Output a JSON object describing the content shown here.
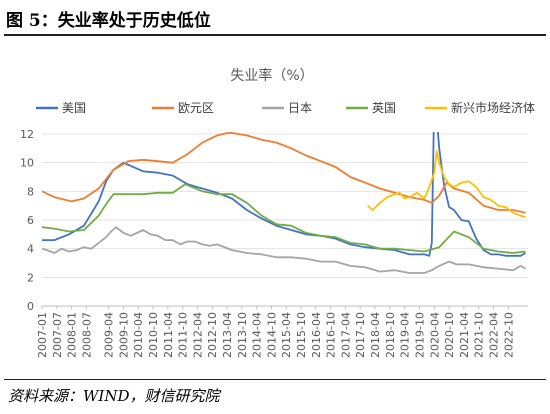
{
  "figure": {
    "title": "图 5：失业率处于历史低位",
    "source": "资料来源：WIND，财信研究院"
  },
  "chart_data": {
    "type": "line",
    "title": "失业率（%）",
    "xlabel": "",
    "ylabel": "",
    "ylim": [
      0,
      12
    ],
    "yticks": [
      0,
      2,
      4,
      6,
      8,
      10,
      12
    ],
    "xlim": [
      "2007-01",
      "2023-06"
    ],
    "xtick_labels": [
      "2007-01",
      "2007-07",
      "2008-01",
      "2008-07",
      "2009-04",
      "2009-10",
      "2010-04",
      "2010-10",
      "2011-04",
      "2011-10",
      "2012-04",
      "2012-10",
      "2013-04",
      "2013-10",
      "2014-04",
      "2014-10",
      "2015-04",
      "2015-10",
      "2016-04",
      "2016-10",
      "2017-04",
      "2017-10",
      "2018-04",
      "2018-10",
      "2019-04",
      "2019-10",
      "2020-04",
      "2020-10",
      "2021-04",
      "2021-10",
      "2022-04",
      "2022-10"
    ],
    "grid": "horizontal",
    "legend_position": "top",
    "series": [
      {
        "name": "美国",
        "color": "#4472C4",
        "points": [
          [
            "2007-01",
            4.6
          ],
          [
            "2007-06",
            4.6
          ],
          [
            "2007-12",
            5.0
          ],
          [
            "2008-06",
            5.6
          ],
          [
            "2008-12",
            7.3
          ],
          [
            "2009-03",
            8.7
          ],
          [
            "2009-06",
            9.5
          ],
          [
            "2009-10",
            10.0
          ],
          [
            "2010-06",
            9.4
          ],
          [
            "2010-12",
            9.3
          ],
          [
            "2011-06",
            9.1
          ],
          [
            "2011-12",
            8.5
          ],
          [
            "2012-06",
            8.2
          ],
          [
            "2012-12",
            7.9
          ],
          [
            "2013-06",
            7.5
          ],
          [
            "2013-12",
            6.7
          ],
          [
            "2014-06",
            6.1
          ],
          [
            "2014-12",
            5.6
          ],
          [
            "2015-06",
            5.3
          ],
          [
            "2015-12",
            5.0
          ],
          [
            "2016-06",
            4.9
          ],
          [
            "2016-12",
            4.7
          ],
          [
            "2017-06",
            4.3
          ],
          [
            "2017-12",
            4.1
          ],
          [
            "2018-06",
            4.0
          ],
          [
            "2018-12",
            3.9
          ],
          [
            "2019-06",
            3.6
          ],
          [
            "2019-12",
            3.6
          ],
          [
            "2020-02",
            3.5
          ],
          [
            "2020-03",
            4.4
          ],
          [
            "2020-04",
            14.7
          ],
          [
            "2020-05",
            13.2
          ],
          [
            "2020-06",
            11.0
          ],
          [
            "2020-08",
            8.4
          ],
          [
            "2020-10",
            6.9
          ],
          [
            "2020-12",
            6.7
          ],
          [
            "2021-03",
            6.0
          ],
          [
            "2021-06",
            5.9
          ],
          [
            "2021-09",
            4.7
          ],
          [
            "2021-12",
            3.9
          ],
          [
            "2022-03",
            3.6
          ],
          [
            "2022-06",
            3.6
          ],
          [
            "2022-09",
            3.5
          ],
          [
            "2022-12",
            3.5
          ],
          [
            "2023-03",
            3.5
          ],
          [
            "2023-05",
            3.7
          ]
        ]
      },
      {
        "name": "欧元区",
        "color": "#ED7D31",
        "points": [
          [
            "2007-01",
            8.0
          ],
          [
            "2007-06",
            7.6
          ],
          [
            "2008-01",
            7.3
          ],
          [
            "2008-06",
            7.5
          ],
          [
            "2008-12",
            8.2
          ],
          [
            "2009-06",
            9.5
          ],
          [
            "2009-12",
            10.1
          ],
          [
            "2010-06",
            10.2
          ],
          [
            "2010-12",
            10.1
          ],
          [
            "2011-06",
            10.0
          ],
          [
            "2011-12",
            10.6
          ],
          [
            "2012-06",
            11.4
          ],
          [
            "2012-12",
            11.9
          ],
          [
            "2013-05",
            12.1
          ],
          [
            "2013-12",
            11.9
          ],
          [
            "2014-06",
            11.6
          ],
          [
            "2014-12",
            11.4
          ],
          [
            "2015-06",
            11.0
          ],
          [
            "2015-12",
            10.5
          ],
          [
            "2016-06",
            10.1
          ],
          [
            "2016-12",
            9.7
          ],
          [
            "2017-06",
            9.0
          ],
          [
            "2017-12",
            8.6
          ],
          [
            "2018-06",
            8.2
          ],
          [
            "2018-12",
            7.9
          ],
          [
            "2019-06",
            7.6
          ],
          [
            "2019-12",
            7.4
          ],
          [
            "2020-03",
            7.2
          ],
          [
            "2020-06",
            7.7
          ],
          [
            "2020-09",
            8.6
          ],
          [
            "2020-12",
            8.2
          ],
          [
            "2021-06",
            7.9
          ],
          [
            "2021-12",
            7.0
          ],
          [
            "2022-06",
            6.7
          ],
          [
            "2022-12",
            6.7
          ],
          [
            "2023-05",
            6.5
          ]
        ]
      },
      {
        "name": "日本",
        "color": "#A5A5A5",
        "points": [
          [
            "2007-01",
            4.0
          ],
          [
            "2007-03",
            3.9
          ],
          [
            "2007-06",
            3.7
          ],
          [
            "2007-09",
            4.0
          ],
          [
            "2007-12",
            3.8
          ],
          [
            "2008-03",
            3.9
          ],
          [
            "2008-06",
            4.1
          ],
          [
            "2008-09",
            4.0
          ],
          [
            "2008-12",
            4.4
          ],
          [
            "2009-03",
            4.8
          ],
          [
            "2009-05",
            5.2
          ],
          [
            "2009-07",
            5.5
          ],
          [
            "2009-10",
            5.1
          ],
          [
            "2010-01",
            4.9
          ],
          [
            "2010-06",
            5.3
          ],
          [
            "2010-09",
            5.0
          ],
          [
            "2010-12",
            4.9
          ],
          [
            "2011-03",
            4.6
          ],
          [
            "2011-06",
            4.6
          ],
          [
            "2011-09",
            4.3
          ],
          [
            "2011-12",
            4.5
          ],
          [
            "2012-03",
            4.5
          ],
          [
            "2012-06",
            4.3
          ],
          [
            "2012-09",
            4.2
          ],
          [
            "2012-12",
            4.3
          ],
          [
            "2013-06",
            3.9
          ],
          [
            "2013-12",
            3.7
          ],
          [
            "2014-06",
            3.6
          ],
          [
            "2014-12",
            3.4
          ],
          [
            "2015-06",
            3.4
          ],
          [
            "2015-12",
            3.3
          ],
          [
            "2016-06",
            3.1
          ],
          [
            "2016-12",
            3.1
          ],
          [
            "2017-06",
            2.8
          ],
          [
            "2017-12",
            2.7
          ],
          [
            "2018-06",
            2.4
          ],
          [
            "2018-12",
            2.5
          ],
          [
            "2019-06",
            2.3
          ],
          [
            "2019-12",
            2.3
          ],
          [
            "2020-03",
            2.5
          ],
          [
            "2020-06",
            2.8
          ],
          [
            "2020-10",
            3.1
          ],
          [
            "2021-01",
            2.9
          ],
          [
            "2021-06",
            2.9
          ],
          [
            "2021-12",
            2.7
          ],
          [
            "2022-06",
            2.6
          ],
          [
            "2022-12",
            2.5
          ],
          [
            "2023-03",
            2.8
          ],
          [
            "2023-05",
            2.6
          ]
        ]
      },
      {
        "name": "英国",
        "color": "#70AD47",
        "points": [
          [
            "2007-01",
            5.5
          ],
          [
            "2007-06",
            5.4
          ],
          [
            "2007-12",
            5.2
          ],
          [
            "2008-06",
            5.3
          ],
          [
            "2008-12",
            6.3
          ],
          [
            "2009-03",
            7.1
          ],
          [
            "2009-06",
            7.8
          ],
          [
            "2009-12",
            7.8
          ],
          [
            "2010-06",
            7.8
          ],
          [
            "2010-12",
            7.9
          ],
          [
            "2011-06",
            7.9
          ],
          [
            "2011-11",
            8.5
          ],
          [
            "2012-06",
            8.0
          ],
          [
            "2012-12",
            7.8
          ],
          [
            "2013-06",
            7.8
          ],
          [
            "2013-12",
            7.2
          ],
          [
            "2014-06",
            6.3
          ],
          [
            "2014-12",
            5.7
          ],
          [
            "2015-06",
            5.6
          ],
          [
            "2015-12",
            5.1
          ],
          [
            "2016-06",
            4.9
          ],
          [
            "2016-12",
            4.8
          ],
          [
            "2017-06",
            4.4
          ],
          [
            "2017-12",
            4.3
          ],
          [
            "2018-06",
            4.0
          ],
          [
            "2018-12",
            4.0
          ],
          [
            "2019-06",
            3.9
          ],
          [
            "2019-12",
            3.8
          ],
          [
            "2020-06",
            4.1
          ],
          [
            "2020-12",
            5.2
          ],
          [
            "2021-06",
            4.8
          ],
          [
            "2021-12",
            4.0
          ],
          [
            "2022-06",
            3.8
          ],
          [
            "2022-12",
            3.7
          ],
          [
            "2023-05",
            3.8
          ]
        ]
      },
      {
        "name": "新兴市场经济体",
        "color": "#FFC000",
        "points": [
          [
            "2018-01",
            7.0
          ],
          [
            "2018-03",
            6.7
          ],
          [
            "2018-06",
            7.2
          ],
          [
            "2018-09",
            7.6
          ],
          [
            "2018-12",
            7.8
          ],
          [
            "2019-02",
            7.9
          ],
          [
            "2019-04",
            7.5
          ],
          [
            "2019-06",
            7.6
          ],
          [
            "2019-09",
            7.9
          ],
          [
            "2019-12",
            7.5
          ],
          [
            "2020-02",
            8.3
          ],
          [
            "2020-04",
            9.3
          ],
          [
            "2020-05",
            10.8
          ],
          [
            "2020-06",
            10.0
          ],
          [
            "2020-08",
            9.0
          ],
          [
            "2020-10",
            8.5
          ],
          [
            "2020-12",
            8.3
          ],
          [
            "2021-03",
            8.6
          ],
          [
            "2021-06",
            8.7
          ],
          [
            "2021-09",
            8.3
          ],
          [
            "2021-12",
            7.6
          ],
          [
            "2022-03",
            7.4
          ],
          [
            "2022-06",
            7.0
          ],
          [
            "2022-09",
            6.9
          ],
          [
            "2022-12",
            6.5
          ],
          [
            "2023-03",
            6.3
          ],
          [
            "2023-05",
            6.2
          ]
        ]
      }
    ]
  }
}
